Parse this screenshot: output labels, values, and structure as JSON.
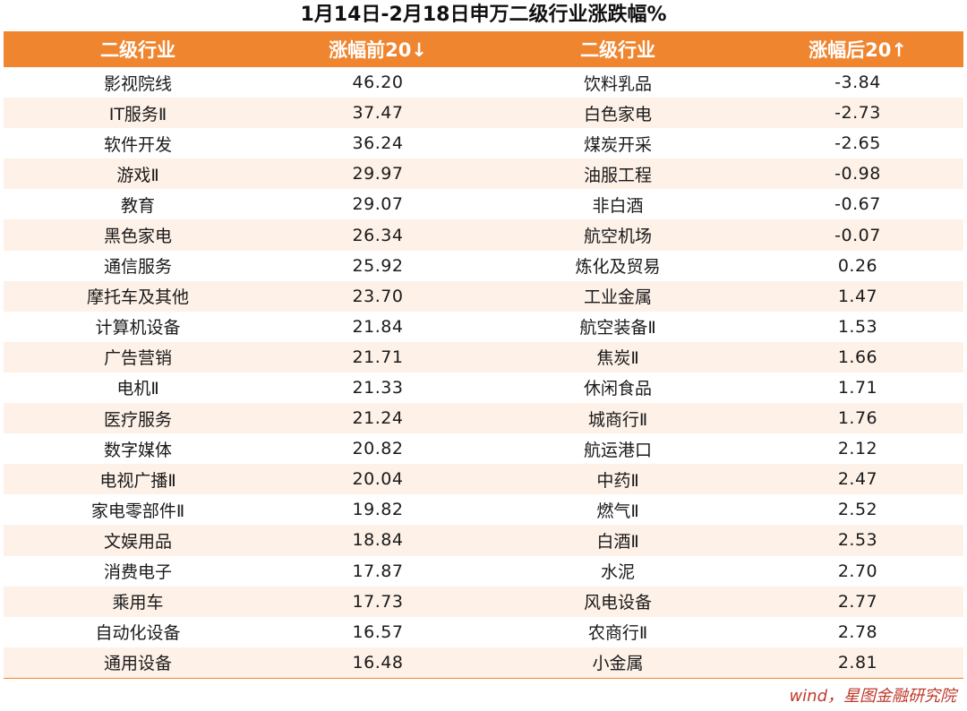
{
  "chart_data": {
    "type": "table",
    "title": "1月14日-2月18日申万二级行业涨跌幅%",
    "headers": [
      "二级行业",
      "涨幅前20↓",
      "二级行业",
      "涨幅后20↑"
    ],
    "rows": [
      [
        "影视院线",
        "46.20",
        "饮料乳品",
        "-3.84"
      ],
      [
        "IT服务Ⅱ",
        "37.47",
        "白色家电",
        "-2.73"
      ],
      [
        "软件开发",
        "36.24",
        "煤炭开采",
        "-2.65"
      ],
      [
        "游戏Ⅱ",
        "29.97",
        "油服工程",
        "-0.98"
      ],
      [
        "教育",
        "29.07",
        "非白酒",
        "-0.67"
      ],
      [
        "黑色家电",
        "26.34",
        "航空机场",
        "-0.07"
      ],
      [
        "通信服务",
        "25.92",
        "炼化及贸易",
        "0.26"
      ],
      [
        "摩托车及其他",
        "23.70",
        "工业金属",
        "1.47"
      ],
      [
        "计算机设备",
        "21.84",
        "航空装备Ⅱ",
        "1.53"
      ],
      [
        "广告营销",
        "21.71",
        "焦炭Ⅱ",
        "1.66"
      ],
      [
        "电机Ⅱ",
        "21.33",
        "休闲食品",
        "1.71"
      ],
      [
        "医疗服务",
        "21.24",
        "城商行Ⅱ",
        "1.76"
      ],
      [
        "数字媒体",
        "20.82",
        "航运港口",
        "2.12"
      ],
      [
        "电视广播Ⅱ",
        "20.04",
        "中药Ⅱ",
        "2.47"
      ],
      [
        "家电零部件Ⅱ",
        "19.82",
        "燃气Ⅱ",
        "2.52"
      ],
      [
        "文娱用品",
        "18.84",
        "白酒Ⅱ",
        "2.53"
      ],
      [
        "消费电子",
        "17.87",
        "水泥",
        "2.70"
      ],
      [
        "乘用车",
        "17.73",
        "风电设备",
        "2.77"
      ],
      [
        "自动化设备",
        "16.57",
        "农商行Ⅱ",
        "2.78"
      ],
      [
        "通用设备",
        "16.48",
        "小金属",
        "2.81"
      ]
    ],
    "source": "wind，星图金融研究院"
  },
  "colors": {
    "header_bg": "#f0852f",
    "header_text": "#ffffff",
    "stripe_bg": "#fdf1e8",
    "source_text": "#c0392b"
  }
}
